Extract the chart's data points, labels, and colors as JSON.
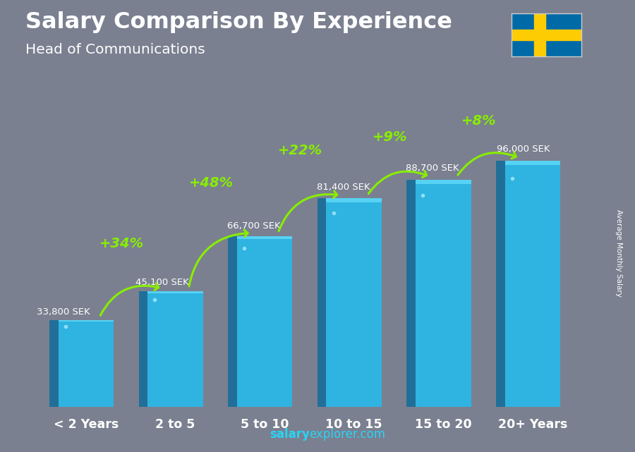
{
  "title": "Salary Comparison By Experience",
  "subtitle": "Head of Communications",
  "categories": [
    "< 2 Years",
    "2 to 5",
    "5 to 10",
    "10 to 15",
    "15 to 20",
    "20+ Years"
  ],
  "values": [
    33800,
    45100,
    66700,
    81400,
    88700,
    96000
  ],
  "value_labels": [
    "33,800 SEK",
    "45,100 SEK",
    "66,700 SEK",
    "81,400 SEK",
    "88,700 SEK",
    "96,000 SEK"
  ],
  "pct_labels": [
    "+34%",
    "+48%",
    "+22%",
    "+9%",
    "+8%"
  ],
  "bar_front_color": "#29b8e8",
  "bar_left_color": "#1a6e99",
  "bar_top_color": "#5dd8f8",
  "bar_highlight_color": "#7be8ff",
  "ylabel": "Average Monthly Salary",
  "footer_bold": "salary",
  "footer_normal": "explorer.com",
  "text_color_white": "#ffffff",
  "pct_color": "#88ee00",
  "bg_color": "#7a8090",
  "ylim": [
    0,
    120000
  ],
  "flag_blue": "#006AA7",
  "flag_yellow": "#FECC02"
}
